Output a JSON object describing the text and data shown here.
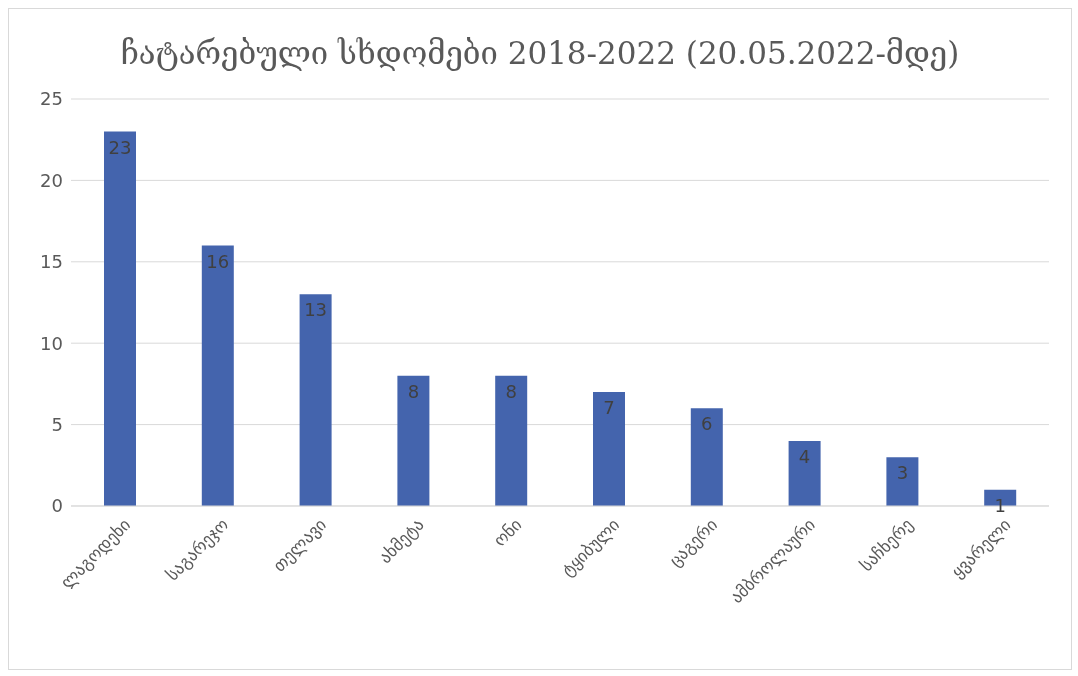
{
  "chart_data": {
    "type": "bar",
    "title": "ჩატარებული სხდომები 2018-2022 (20.05.2022-მდე)",
    "categories": [
      "ლაგოდეხი",
      "საგარეჯო",
      "თელავი",
      "ახმეტა",
      "ონი",
      "ტყიბული",
      "ცაგერი",
      "ამბროლაური",
      "საჩხერე",
      "ყვარელი"
    ],
    "values": [
      23,
      16,
      13,
      8,
      8,
      7,
      6,
      4,
      3,
      1
    ],
    "color": "#4464ad",
    "ylim": [
      0,
      25
    ],
    "yticks": [
      0,
      5,
      10,
      15,
      20,
      25
    ],
    "grid": "y",
    "data_labels": true
  }
}
